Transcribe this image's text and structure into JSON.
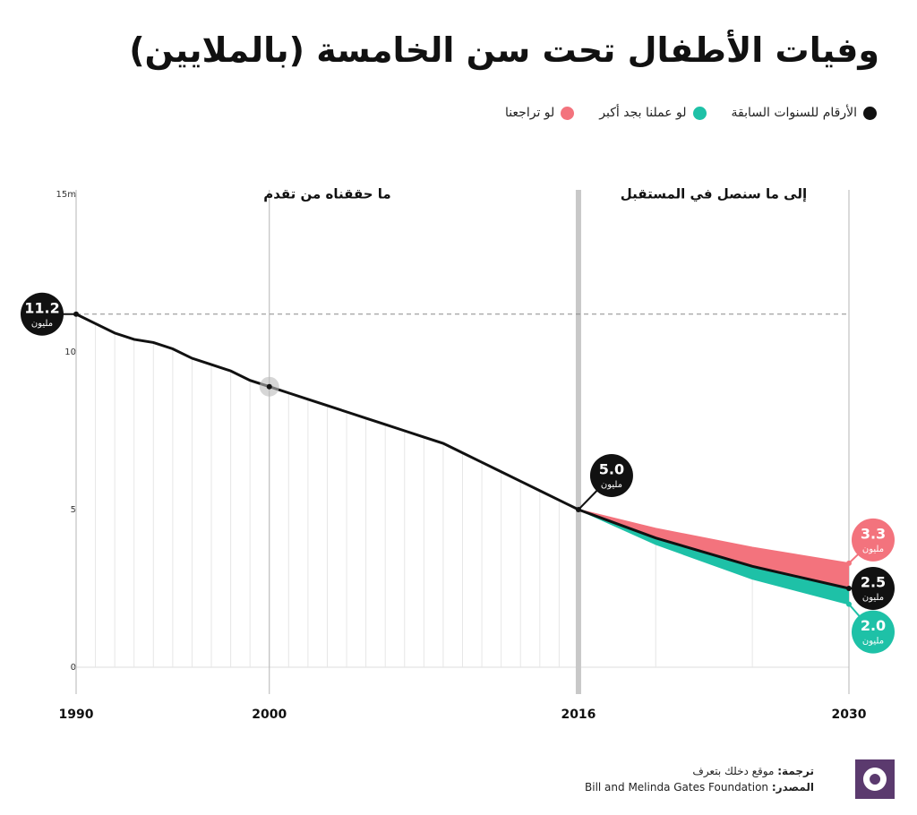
{
  "title": "وفيات الأطفال تحت سن الخامسة (بالملايين)",
  "chart_data": {
    "type": "line",
    "sections": [
      "ما حققناه من تقدم",
      "إلى ما سنصل في المستقبل"
    ],
    "xlim": [
      1990,
      2030
    ],
    "xticks": [
      1990,
      2000,
      2016,
      2030
    ],
    "ylim": [
      0,
      15
    ],
    "yticks": [
      0,
      5,
      10,
      {
        "value": 15,
        "label": "15m"
      }
    ],
    "value_unit": "مليون",
    "series": [
      {
        "name": "الأرقام للسنوات السابقة",
        "color": "#111111",
        "x": [
          1990,
          1991,
          1992,
          1993,
          1994,
          1995,
          1996,
          1997,
          1998,
          1999,
          2000,
          2001,
          2002,
          2003,
          2004,
          2005,
          2006,
          2007,
          2008,
          2009,
          2010,
          2011,
          2012,
          2013,
          2014,
          2015,
          2016,
          2020,
          2025,
          2030
        ],
        "values": [
          11.2,
          10.9,
          10.6,
          10.4,
          10.3,
          10.1,
          9.8,
          9.6,
          9.4,
          9.1,
          8.9,
          8.7,
          8.5,
          8.3,
          8.1,
          7.9,
          7.7,
          7.5,
          7.3,
          7.1,
          6.8,
          6.5,
          6.2,
          5.9,
          5.6,
          5.3,
          5.0,
          4.1,
          3.2,
          2.5
        ],
        "value_labels": [
          "11.2",
          null,
          null,
          null,
          null,
          null,
          null,
          null,
          null,
          null,
          null,
          null,
          null,
          null,
          null,
          null,
          null,
          null,
          null,
          null,
          null,
          null,
          null,
          null,
          null,
          null,
          "5.0",
          null,
          null,
          "2.5"
        ]
      },
      {
        "name": "لو تراجعنا",
        "color": "#f3737d",
        "x": [
          2016,
          2020,
          2025,
          2030
        ],
        "values": [
          5.0,
          4.4,
          3.8,
          3.3
        ],
        "value_labels": [
          null,
          null,
          null,
          "3.3"
        ]
      },
      {
        "name": "لو عملنا بجد أكبر",
        "color": "#1ec1a7",
        "x": [
          2016,
          2020,
          2025,
          2030
        ],
        "values": [
          5.0,
          3.9,
          2.8,
          2.0
        ],
        "value_labels": [
          null,
          null,
          null,
          "2.0"
        ]
      }
    ]
  },
  "footer": {
    "translation_label": "ترجمة:",
    "translation": "موقع دخلك بتعرف",
    "source_label": "المصدر:",
    "source": "Bill and Melinda Gates Foundation"
  }
}
